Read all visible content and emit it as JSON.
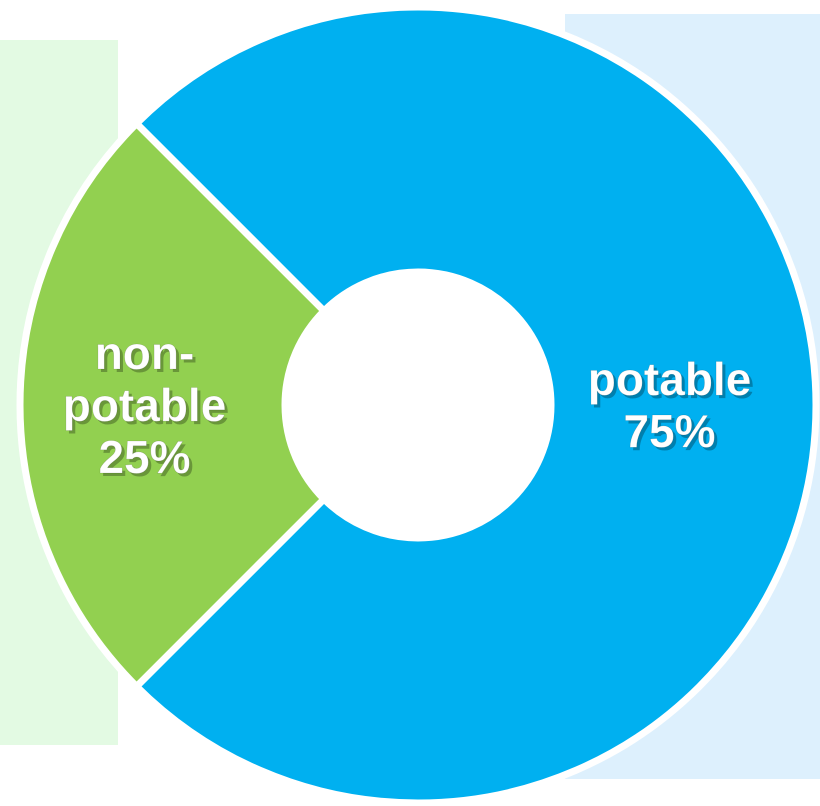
{
  "chart_data": {
    "type": "pie",
    "style": "donut",
    "title": "",
    "legend": "none",
    "slices": [
      {
        "label_lines": [
          "potable",
          "75%"
        ],
        "value": 75,
        "color": "#00b0f0"
      },
      {
        "label_lines": [
          "non-",
          "potable",
          "25%"
        ],
        "value": 25,
        "color": "#92d050"
      }
    ]
  },
  "colors": {
    "potable": "#00b0f0",
    "non_potable": "#92d050",
    "separator": "#ffffff",
    "left_panel": "#e3fae3",
    "right_panel": "#ddf0fd"
  }
}
